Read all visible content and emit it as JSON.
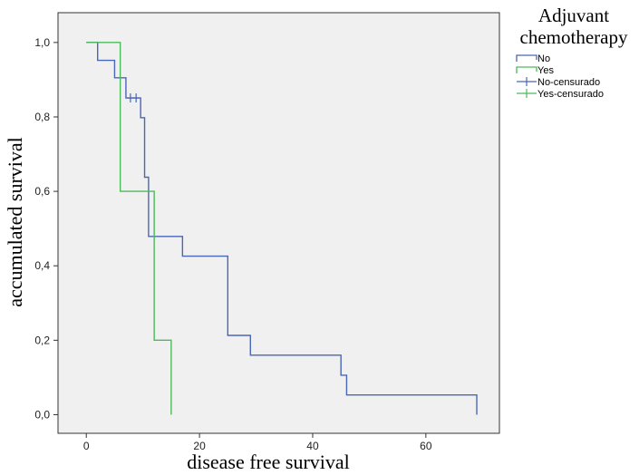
{
  "chart_data": {
    "type": "line",
    "subtype": "kaplan-meier step plot",
    "xlabel": "disease free survival",
    "ylabel": "accumulated survival",
    "xlim": [
      -5,
      73
    ],
    "ylim": [
      -0.05,
      1.08
    ],
    "x_ticks": [
      0,
      20,
      40,
      60
    ],
    "x_tick_labels": [
      "0",
      "20",
      "40",
      "60"
    ],
    "y_ticks": [
      0.0,
      0.2,
      0.4,
      0.6,
      0.8,
      1.0
    ],
    "y_tick_labels": [
      "0,0",
      "0,2",
      "0,4",
      "0,6",
      "0,8",
      "1,0"
    ],
    "grid": false,
    "legend": {
      "title_line1": "Adjuvant",
      "title_line2": "chemotherapy",
      "placement": "outside-right-top",
      "entries": [
        {
          "label": "No",
          "marker": "step",
          "color": "#4a66b8"
        },
        {
          "label": "Yes",
          "marker": "step",
          "color": "#4cbb5a"
        },
        {
          "label": "No-censurado",
          "marker": "cross",
          "color": "#4a66b8"
        },
        {
          "label": "Yes-censurado",
          "marker": "cross",
          "color": "#4cbb5a"
        }
      ]
    },
    "series": [
      {
        "name": "No",
        "color": "#4a66b8",
        "x": [
          0,
          2,
          5,
          7,
          9.6,
          10.3,
          11,
          17,
          25,
          29,
          45,
          46,
          69
        ],
        "y": [
          1.0,
          0.952,
          0.905,
          0.851,
          0.798,
          0.638,
          0.479,
          0.426,
          0.213,
          0.16,
          0.106,
          0.053,
          0.0
        ],
        "censored_x": [
          7.8,
          8.8
        ],
        "censored_y": [
          0.851,
          0.851
        ]
      },
      {
        "name": "Yes",
        "color": "#4cbb5a",
        "x": [
          0,
          6,
          12,
          15
        ],
        "y": [
          1.0,
          0.6,
          0.2,
          0.0
        ],
        "censored_x": [],
        "censored_y": []
      }
    ]
  }
}
